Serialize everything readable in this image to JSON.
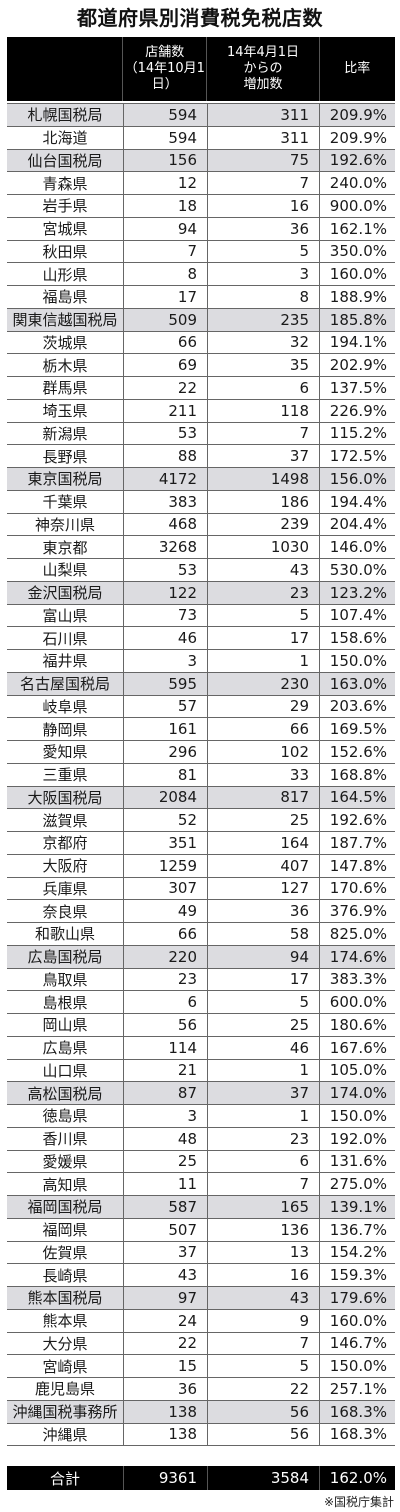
{
  "title": "都道府県別消費税免税店数",
  "header": {
    "col_name": "",
    "col_stores": "店舗数\n（14年10月1日）",
    "col_increase": "14年4月1日\nからの\n増加数",
    "col_ratio": "比率"
  },
  "rows": [
    {
      "name": "札幌国税局",
      "stores": "594",
      "increase": "311",
      "ratio": "209.9%",
      "region": true
    },
    {
      "name": "北海道",
      "stores": "594",
      "increase": "311",
      "ratio": "209.9%",
      "region": false
    },
    {
      "name": "仙台国税局",
      "stores": "156",
      "increase": "75",
      "ratio": "192.6%",
      "region": true
    },
    {
      "name": "青森県",
      "stores": "12",
      "increase": "7",
      "ratio": "240.0%",
      "region": false
    },
    {
      "name": "岩手県",
      "stores": "18",
      "increase": "16",
      "ratio": "900.0%",
      "region": false
    },
    {
      "name": "宮城県",
      "stores": "94",
      "increase": "36",
      "ratio": "162.1%",
      "region": false
    },
    {
      "name": "秋田県",
      "stores": "7",
      "increase": "5",
      "ratio": "350.0%",
      "region": false
    },
    {
      "name": "山形県",
      "stores": "8",
      "increase": "3",
      "ratio": "160.0%",
      "region": false
    },
    {
      "name": "福島県",
      "stores": "17",
      "increase": "8",
      "ratio": "188.9%",
      "region": false
    },
    {
      "name": "関東信越国税局",
      "stores": "509",
      "increase": "235",
      "ratio": "185.8%",
      "region": true
    },
    {
      "name": "茨城県",
      "stores": "66",
      "increase": "32",
      "ratio": "194.1%",
      "region": false
    },
    {
      "name": "栃木県",
      "stores": "69",
      "increase": "35",
      "ratio": "202.9%",
      "region": false
    },
    {
      "name": "群馬県",
      "stores": "22",
      "increase": "6",
      "ratio": "137.5%",
      "region": false
    },
    {
      "name": "埼玉県",
      "stores": "211",
      "increase": "118",
      "ratio": "226.9%",
      "region": false
    },
    {
      "name": "新潟県",
      "stores": "53",
      "increase": "7",
      "ratio": "115.2%",
      "region": false
    },
    {
      "name": "長野県",
      "stores": "88",
      "increase": "37",
      "ratio": "172.5%",
      "region": false
    },
    {
      "name": "東京国税局",
      "stores": "4172",
      "increase": "1498",
      "ratio": "156.0%",
      "region": true
    },
    {
      "name": "千葉県",
      "stores": "383",
      "increase": "186",
      "ratio": "194.4%",
      "region": false
    },
    {
      "name": "神奈川県",
      "stores": "468",
      "increase": "239",
      "ratio": "204.4%",
      "region": false
    },
    {
      "name": "東京都",
      "stores": "3268",
      "increase": "1030",
      "ratio": "146.0%",
      "region": false
    },
    {
      "name": "山梨県",
      "stores": "53",
      "increase": "43",
      "ratio": "530.0%",
      "region": false
    },
    {
      "name": "金沢国税局",
      "stores": "122",
      "increase": "23",
      "ratio": "123.2%",
      "region": true
    },
    {
      "name": "富山県",
      "stores": "73",
      "increase": "5",
      "ratio": "107.4%",
      "region": false
    },
    {
      "name": "石川県",
      "stores": "46",
      "increase": "17",
      "ratio": "158.6%",
      "region": false
    },
    {
      "name": "福井県",
      "stores": "3",
      "increase": "1",
      "ratio": "150.0%",
      "region": false
    },
    {
      "name": "名古屋国税局",
      "stores": "595",
      "increase": "230",
      "ratio": "163.0%",
      "region": true
    },
    {
      "name": "岐阜県",
      "stores": "57",
      "increase": "29",
      "ratio": "203.6%",
      "region": false
    },
    {
      "name": "静岡県",
      "stores": "161",
      "increase": "66",
      "ratio": "169.5%",
      "region": false
    },
    {
      "name": "愛知県",
      "stores": "296",
      "increase": "102",
      "ratio": "152.6%",
      "region": false
    },
    {
      "name": "三重県",
      "stores": "81",
      "increase": "33",
      "ratio": "168.8%",
      "region": false
    },
    {
      "name": "大阪国税局",
      "stores": "2084",
      "increase": "817",
      "ratio": "164.5%",
      "region": true
    },
    {
      "name": "滋賀県",
      "stores": "52",
      "increase": "25",
      "ratio": "192.6%",
      "region": false
    },
    {
      "name": "京都府",
      "stores": "351",
      "increase": "164",
      "ratio": "187.7%",
      "region": false
    },
    {
      "name": "大阪府",
      "stores": "1259",
      "increase": "407",
      "ratio": "147.8%",
      "region": false
    },
    {
      "name": "兵庫県",
      "stores": "307",
      "increase": "127",
      "ratio": "170.6%",
      "region": false
    },
    {
      "name": "奈良県",
      "stores": "49",
      "increase": "36",
      "ratio": "376.9%",
      "region": false
    },
    {
      "name": "和歌山県",
      "stores": "66",
      "increase": "58",
      "ratio": "825.0%",
      "region": false
    },
    {
      "name": "広島国税局",
      "stores": "220",
      "increase": "94",
      "ratio": "174.6%",
      "region": true
    },
    {
      "name": "鳥取県",
      "stores": "23",
      "increase": "17",
      "ratio": "383.3%",
      "region": false
    },
    {
      "name": "島根県",
      "stores": "6",
      "increase": "5",
      "ratio": "600.0%",
      "region": false
    },
    {
      "name": "岡山県",
      "stores": "56",
      "increase": "25",
      "ratio": "180.6%",
      "region": false
    },
    {
      "name": "広島県",
      "stores": "114",
      "increase": "46",
      "ratio": "167.6%",
      "region": false
    },
    {
      "name": "山口県",
      "stores": "21",
      "increase": "1",
      "ratio": "105.0%",
      "region": false
    },
    {
      "name": "高松国税局",
      "stores": "87",
      "increase": "37",
      "ratio": "174.0%",
      "region": true
    },
    {
      "name": "徳島県",
      "stores": "3",
      "increase": "1",
      "ratio": "150.0%",
      "region": false
    },
    {
      "name": "香川県",
      "stores": "48",
      "increase": "23",
      "ratio": "192.0%",
      "region": false
    },
    {
      "name": "愛媛県",
      "stores": "25",
      "increase": "6",
      "ratio": "131.6%",
      "region": false
    },
    {
      "name": "高知県",
      "stores": "11",
      "increase": "7",
      "ratio": "275.0%",
      "region": false
    },
    {
      "name": "福岡国税局",
      "stores": "587",
      "increase": "165",
      "ratio": "139.1%",
      "region": true
    },
    {
      "name": "福岡県",
      "stores": "507",
      "increase": "136",
      "ratio": "136.7%",
      "region": false
    },
    {
      "name": "佐賀県",
      "stores": "37",
      "increase": "13",
      "ratio": "154.2%",
      "region": false
    },
    {
      "name": "長崎県",
      "stores": "43",
      "increase": "16",
      "ratio": "159.3%",
      "region": false
    },
    {
      "name": "熊本国税局",
      "stores": "97",
      "increase": "43",
      "ratio": "179.6%",
      "region": true
    },
    {
      "name": "熊本県",
      "stores": "24",
      "increase": "9",
      "ratio": "160.0%",
      "region": false
    },
    {
      "name": "大分県",
      "stores": "22",
      "increase": "7",
      "ratio": "146.7%",
      "region": false
    },
    {
      "name": "宮崎県",
      "stores": "15",
      "increase": "5",
      "ratio": "150.0%",
      "region": false
    },
    {
      "name": "鹿児島県",
      "stores": "36",
      "increase": "22",
      "ratio": "257.1%",
      "region": false
    },
    {
      "name": "沖縄国税事務所",
      "stores": "138",
      "increase": "56",
      "ratio": "168.3%",
      "region": true
    },
    {
      "name": "沖縄県",
      "stores": "138",
      "increase": "56",
      "ratio": "168.3%",
      "region": false
    }
  ],
  "total": {
    "name": "合計",
    "stores": "9361",
    "increase": "3584",
    "ratio": "162.0%"
  },
  "source": "※国税庁集計",
  "colors": {
    "header_bg": "#000000",
    "region_bg": "#dcdce0",
    "border": "#666666"
  }
}
